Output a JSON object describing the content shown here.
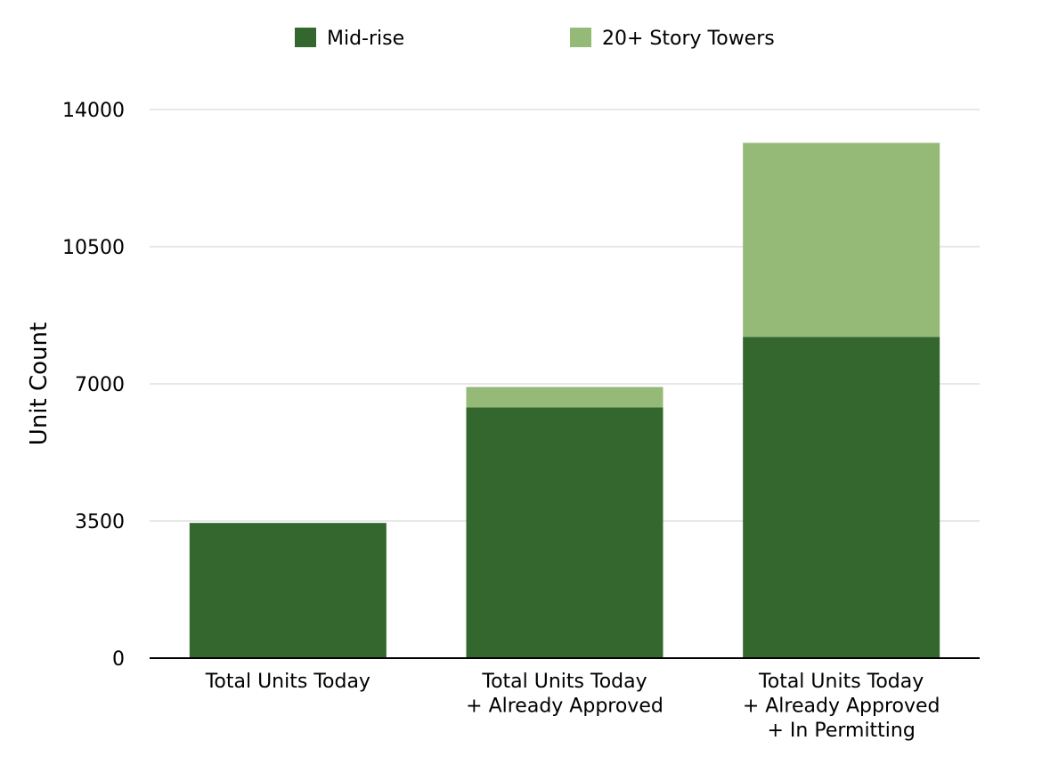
{
  "chart_data": {
    "type": "bar",
    "stacked": true,
    "categories": [
      [
        "Total Units Today"
      ],
      [
        "Total Units Today",
        "+ Already Approved"
      ],
      [
        "Total Units Today",
        "+ Already Approved",
        "+ In Permitting"
      ]
    ],
    "series": [
      {
        "name": "Mid-rise",
        "color": "#33672d",
        "values": [
          3450,
          6400,
          8200
        ]
      },
      {
        "name": "20+ Story Towers",
        "color": "#95ba78",
        "values": [
          0,
          520,
          4950
        ]
      }
    ],
    "ylabel": "Unit Count",
    "xlabel": "",
    "ylim": [
      0,
      14000
    ],
    "yticks": [
      0,
      3500,
      7000,
      10500,
      14000
    ],
    "grid": true,
    "legend": "top"
  }
}
